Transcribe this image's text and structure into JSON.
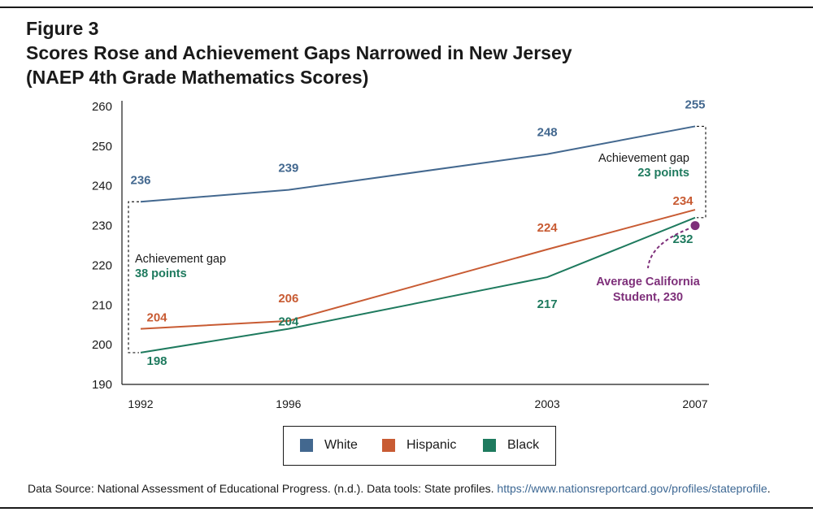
{
  "figure_label": "Figure 3",
  "title_line1": "Scores Rose and Achievement Gaps Narrowed in New Jersey",
  "title_line2": "(NAEP 4th Grade Mathematics Scores)",
  "colors": {
    "white": "#43688f",
    "hispanic": "#c85b33",
    "black": "#1e7a5e",
    "california": "#7e2f7a",
    "text": "#1a1a1a"
  },
  "chart_data": {
    "type": "line",
    "x": [
      1992,
      1996,
      2003,
      2007
    ],
    "xticks": [
      "1992",
      "1996",
      "2003",
      "2007"
    ],
    "ylim": [
      190,
      260
    ],
    "yticks": [
      190,
      200,
      210,
      220,
      230,
      240,
      250,
      260
    ],
    "grid": false,
    "series": [
      {
        "name": "White",
        "values": [
          236,
          239,
          248,
          255
        ],
        "labels": [
          "236",
          "239",
          "248",
          "255"
        ]
      },
      {
        "name": "Hispanic",
        "values": [
          204,
          206,
          224,
          234
        ],
        "labels": [
          "204",
          "206",
          "224",
          "234"
        ]
      },
      {
        "name": "Black",
        "values": [
          198,
          204,
          217,
          232
        ],
        "labels": [
          "198",
          "204",
          "217",
          "232"
        ]
      }
    ],
    "annotations": {
      "gap_1992": {
        "line1": "Achievement gap",
        "line2": "38 points",
        "x": 1992,
        "from": 198,
        "to": 236
      },
      "gap_2007": {
        "line1": "Achievement gap",
        "line2": "23 points",
        "x": 2007,
        "from": 232,
        "to": 255
      },
      "california": {
        "line1": "Average California",
        "line2": "Student, 230",
        "x": 2007,
        "value": 230
      }
    },
    "legend_position": "bottom"
  },
  "legend": [
    {
      "label": "White"
    },
    {
      "label": "Hispanic"
    },
    {
      "label": "Black"
    }
  ],
  "source": {
    "text": "Data Source: National Assessment of Educational Progress. (n.d.). Data tools: State profiles. ",
    "link": "https://www.nationsreportcard.gov/profiles/stateprofile",
    "end": "."
  }
}
